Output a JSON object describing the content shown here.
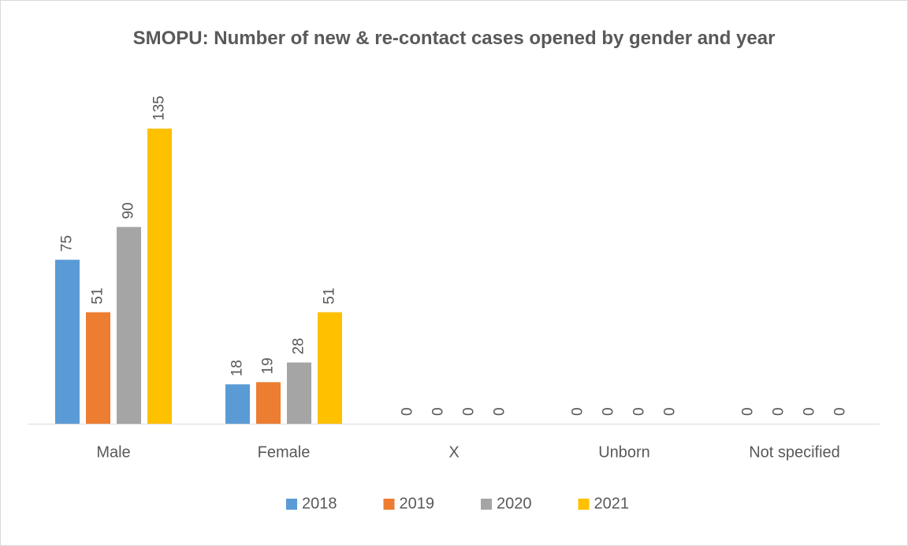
{
  "chart_data": {
    "type": "bar",
    "title": "SMOPU: Number of new & re-contact cases opened by gender and year",
    "categories": [
      "Male",
      "Female",
      "X",
      "Unborn",
      "Not specified"
    ],
    "series": [
      {
        "name": "2018",
        "color": "#5b9bd5",
        "values": [
          75,
          18,
          0,
          0,
          0
        ]
      },
      {
        "name": "2019",
        "color": "#ed7d31",
        "values": [
          51,
          19,
          0,
          0,
          0
        ]
      },
      {
        "name": "2020",
        "color": "#a5a5a5",
        "values": [
          90,
          28,
          0,
          0,
          0
        ]
      },
      {
        "name": "2021",
        "color": "#ffc000",
        "values": [
          135,
          51,
          0,
          0,
          0
        ]
      }
    ],
    "legend": "bottom",
    "data_labels": true
  }
}
